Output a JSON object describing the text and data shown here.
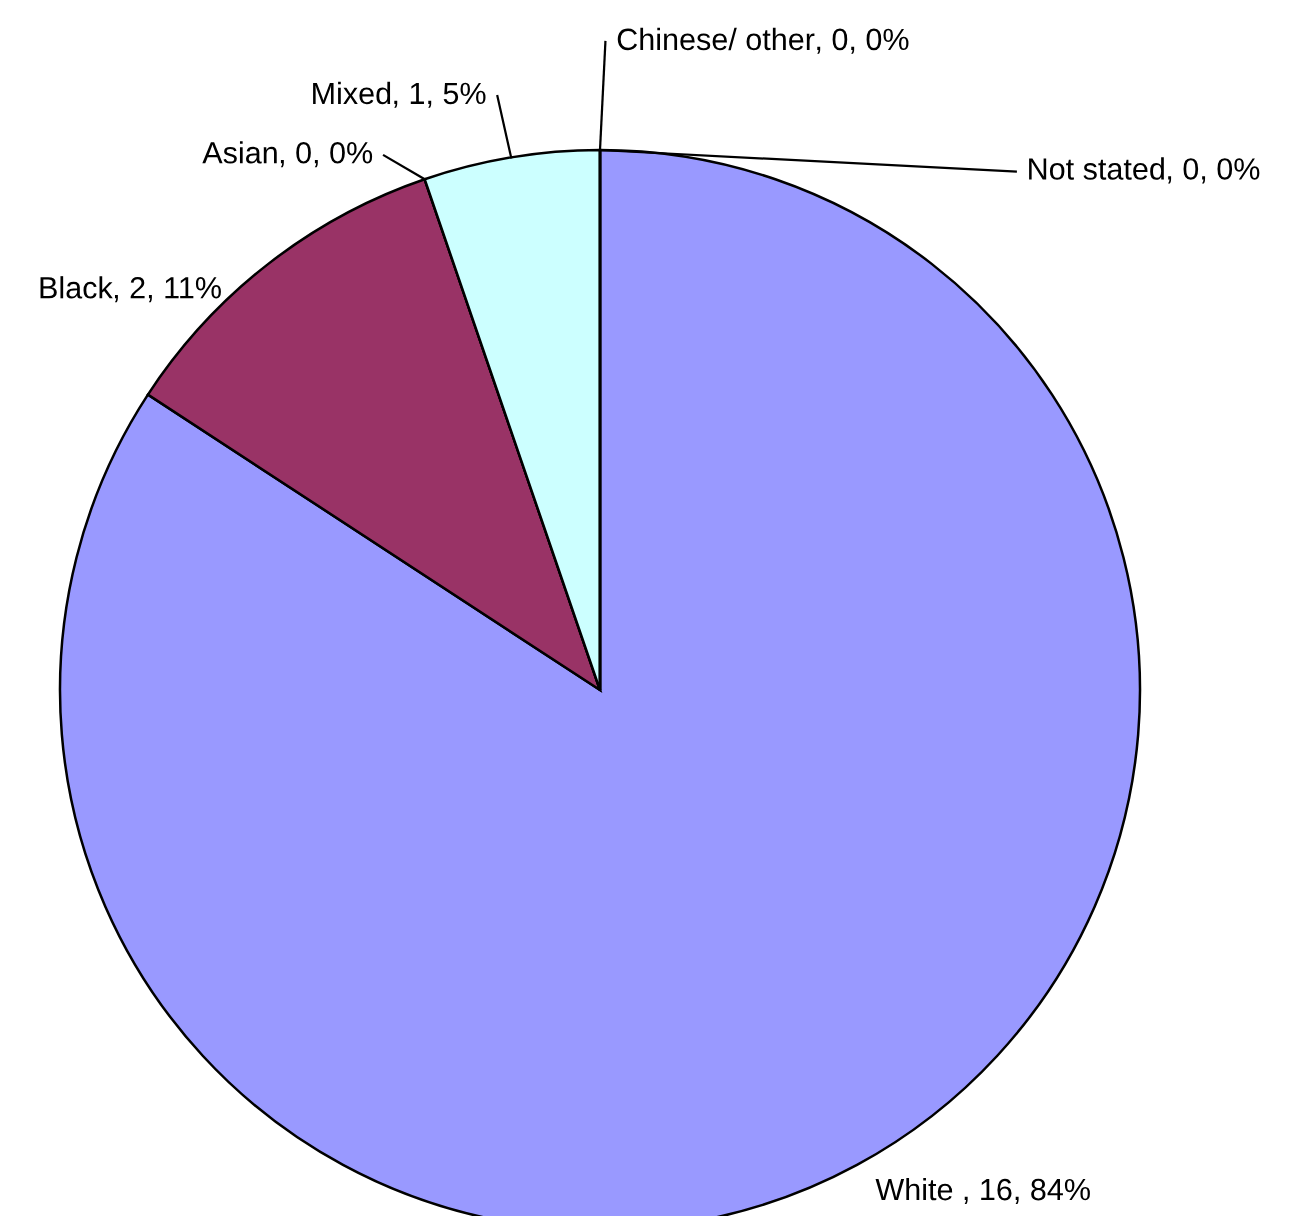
{
  "chart_data": {
    "type": "pie",
    "categories": [
      "White ",
      "Black",
      "Asian",
      "Mixed",
      "Chinese/ other",
      "Not stated"
    ],
    "values": [
      16,
      2,
      0,
      1,
      0,
      0
    ],
    "value_labels": [
      ", 16, 84%",
      ", 2, 11%",
      ", 0, 0%",
      ", 1, 5%",
      ", 0, 0%",
      ", 0, 0%"
    ],
    "colors": [
      "#9999ff",
      "#993366",
      "#ffffcc",
      "#ccffff",
      "#660066",
      "#ff8080"
    ],
    "legend": false
  }
}
